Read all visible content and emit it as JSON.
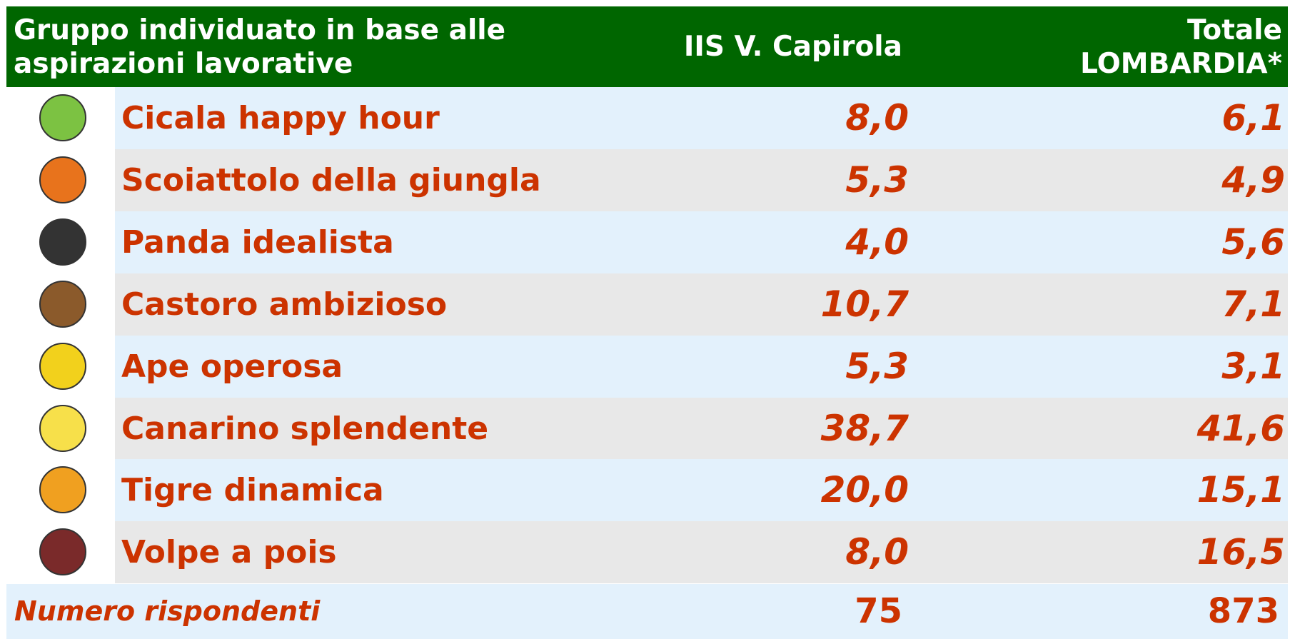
{
  "header": {
    "group": [
      "Gruppo individuato in base alle",
      "aspirazioni lavorative"
    ],
    "capirola": "IIS V. Capirola",
    "lombardia": [
      "Totale",
      "LOMBARDIA*"
    ]
  },
  "rows": [
    {
      "label": "Cicala happy hour",
      "capirola": "8,0",
      "lombardia": "6,1"
    },
    {
      "label": "Scoiattolo della giungla",
      "capirola": "5,3",
      "lombardia": "4,9"
    },
    {
      "label": "Panda idealista",
      "capirola": "4,0",
      "lombardia": "5,6"
    },
    {
      "label": "Castoro ambizioso",
      "capirola": "10,7",
      "lombardia": "7,1"
    },
    {
      "label": "Ape operosa",
      "capirola": "5,3",
      "lombardia": "3,1"
    },
    {
      "label": "Canarino splendente",
      "capirola": "38,7",
      "lombardia": "41,6"
    },
    {
      "label": "Tigre dinamica",
      "capirola": "20,0",
      "lombardia": "15,1"
    },
    {
      "label": "Volpe a pois",
      "capirola": "8,0",
      "lombardia": "16,5"
    }
  ],
  "footer": {
    "label": "Numero rispondenti",
    "capirola": "75",
    "lombardia": "873"
  }
}
